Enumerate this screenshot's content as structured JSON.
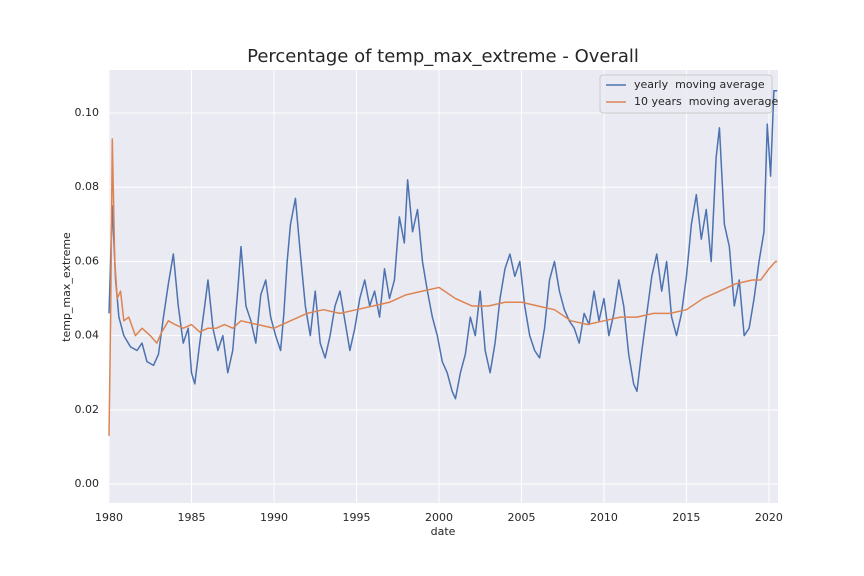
{
  "chart_data": {
    "type": "line",
    "title": "Percentage of temp_max_extreme - Overall",
    "xlabel": "date",
    "ylabel": "temp_max_extreme",
    "xlim": [
      1980,
      2020.55
    ],
    "xticks": [
      1980,
      1985,
      1990,
      1995,
      2000,
      2005,
      2010,
      2015,
      2020
    ],
    "ylim": [
      -0.0051,
      0.1116
    ],
    "yticks": [
      {
        "value": 0,
        "label": "0.00"
      },
      0.02,
      0.04,
      0.06,
      0.08,
      {
        "value": 0.1,
        "label": "0.10"
      }
    ],
    "grid": true,
    "legend": "upper right",
    "series": [
      {
        "name": "yearly  moving average",
        "color": "#4c72b0",
        "x": [
          1980.0,
          1980.2,
          1980.4,
          1980.6,
          1980.9,
          1981.3,
          1981.7,
          1982.0,
          1982.3,
          1982.7,
          1983.0,
          1983.3,
          1983.6,
          1983.9,
          1984.2,
          1984.5,
          1984.8,
          1985.0,
          1985.2,
          1985.5,
          1985.8,
          1986.0,
          1986.3,
          1986.6,
          1986.9,
          1987.2,
          1987.5,
          1987.8,
          1988.0,
          1988.3,
          1988.6,
          1988.9,
          1989.2,
          1989.5,
          1989.8,
          1990.1,
          1990.4,
          1990.6,
          1990.8,
          1991.0,
          1991.3,
          1991.6,
          1991.9,
          1992.2,
          1992.5,
          1992.8,
          1993.1,
          1993.4,
          1993.7,
          1994.0,
          1994.3,
          1994.6,
          1994.9,
          1995.2,
          1995.5,
          1995.8,
          1996.1,
          1996.4,
          1996.7,
          1997.0,
          1997.3,
          1997.6,
          1997.9,
          1998.1,
          1998.4,
          1998.7,
          1999.0,
          1999.3,
          1999.6,
          1999.9,
          2000.2,
          2000.5,
          2000.8,
          2001.0,
          2001.3,
          2001.6,
          2001.9,
          2002.2,
          2002.5,
          2002.8,
          2003.1,
          2003.4,
          2003.7,
          2004.0,
          2004.3,
          2004.6,
          2004.9,
          2005.2,
          2005.5,
          2005.8,
          2006.1,
          2006.4,
          2006.7,
          2007.0,
          2007.3,
          2007.6,
          2007.9,
          2008.2,
          2008.5,
          2008.8,
          2009.1,
          2009.4,
          2009.7,
          2010.0,
          2010.3,
          2010.6,
          2010.9,
          2011.2,
          2011.5,
          2011.8,
          2012.0,
          2012.3,
          2012.6,
          2012.9,
          2013.2,
          2013.5,
          2013.8,
          2014.1,
          2014.4,
          2014.7,
          2015.0,
          2015.3,
          2015.6,
          2015.9,
          2016.2,
          2016.5,
          2016.8,
          2017.0,
          2017.3,
          2017.6,
          2017.9,
          2018.2,
          2018.5,
          2018.8,
          2019.1,
          2019.4,
          2019.7,
          2019.9,
          2020.1,
          2020.3,
          2020.5
        ],
        "values": [
          0.046,
          0.075,
          0.055,
          0.045,
          0.04,
          0.037,
          0.036,
          0.038,
          0.033,
          0.032,
          0.035,
          0.045,
          0.054,
          0.062,
          0.048,
          0.038,
          0.042,
          0.03,
          0.027,
          0.038,
          0.048,
          0.055,
          0.042,
          0.036,
          0.04,
          0.03,
          0.036,
          0.052,
          0.064,
          0.048,
          0.044,
          0.038,
          0.051,
          0.055,
          0.045,
          0.04,
          0.036,
          0.046,
          0.06,
          0.07,
          0.077,
          0.062,
          0.048,
          0.04,
          0.052,
          0.038,
          0.034,
          0.04,
          0.048,
          0.052,
          0.044,
          0.036,
          0.042,
          0.05,
          0.055,
          0.048,
          0.052,
          0.045,
          0.058,
          0.05,
          0.055,
          0.072,
          0.065,
          0.082,
          0.068,
          0.074,
          0.06,
          0.052,
          0.045,
          0.04,
          0.033,
          0.03,
          0.025,
          0.023,
          0.03,
          0.035,
          0.045,
          0.04,
          0.052,
          0.036,
          0.03,
          0.038,
          0.05,
          0.058,
          0.062,
          0.056,
          0.06,
          0.048,
          0.04,
          0.036,
          0.034,
          0.042,
          0.055,
          0.06,
          0.052,
          0.047,
          0.044,
          0.042,
          0.038,
          0.046,
          0.043,
          0.052,
          0.044,
          0.05,
          0.04,
          0.046,
          0.055,
          0.048,
          0.035,
          0.027,
          0.025,
          0.036,
          0.046,
          0.056,
          0.062,
          0.052,
          0.06,
          0.045,
          0.04,
          0.046,
          0.056,
          0.07,
          0.078,
          0.066,
          0.074,
          0.06,
          0.088,
          0.096,
          0.07,
          0.064,
          0.048,
          0.055,
          0.04,
          0.042,
          0.05,
          0.06,
          0.068,
          0.097,
          0.083,
          0.106,
          0.106
        ]
      },
      {
        "name": "10 years  moving average",
        "color": "#dd8452",
        "x": [
          1980.0,
          1980.1,
          1980.2,
          1980.35,
          1980.5,
          1980.7,
          1980.9,
          1981.2,
          1981.6,
          1982.0,
          1982.5,
          1982.9,
          1983.2,
          1983.6,
          1984.0,
          1984.5,
          1985.0,
          1985.5,
          1986.0,
          1986.5,
          1987.0,
          1987.5,
          1988.0,
          1989.0,
          1990.0,
          1990.5,
          1991.0,
          1992.0,
          1993.0,
          1994.0,
          1995.0,
          1996.0,
          1997.0,
          1998.0,
          1999.0,
          2000.0,
          2001.0,
          2002.0,
          2003.0,
          2004.0,
          2005.0,
          2006.0,
          2007.0,
          2008.0,
          2009.0,
          2010.0,
          2011.0,
          2012.0,
          2013.0,
          2014.0,
          2015.0,
          2016.0,
          2017.0,
          2018.0,
          2019.0,
          2019.5,
          2020.0,
          2020.4,
          2020.5
        ],
        "values": [
          0.013,
          0.045,
          0.093,
          0.06,
          0.05,
          0.052,
          0.044,
          0.045,
          0.04,
          0.042,
          0.04,
          0.038,
          0.041,
          0.044,
          0.043,
          0.042,
          0.043,
          0.041,
          0.042,
          0.042,
          0.043,
          0.042,
          0.044,
          0.043,
          0.042,
          0.043,
          0.044,
          0.046,
          0.047,
          0.046,
          0.047,
          0.048,
          0.049,
          0.051,
          0.052,
          0.053,
          0.05,
          0.048,
          0.048,
          0.049,
          0.049,
          0.048,
          0.047,
          0.044,
          0.043,
          0.044,
          0.045,
          0.045,
          0.046,
          0.046,
          0.047,
          0.05,
          0.052,
          0.054,
          0.055,
          0.055,
          0.058,
          0.06,
          0.06
        ]
      }
    ]
  }
}
